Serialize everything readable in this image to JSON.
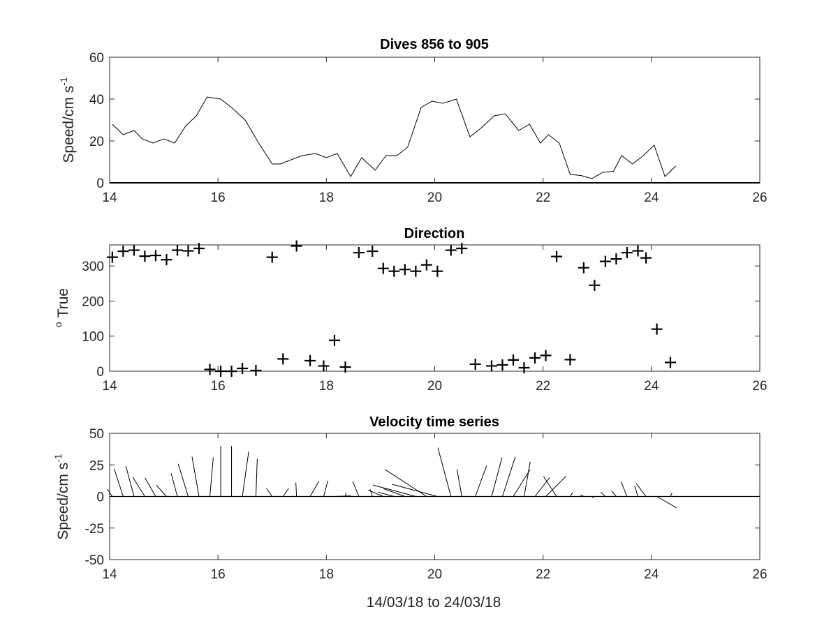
{
  "figure": {
    "xlabel": "14/03/18 to 24/03/18",
    "colors": {
      "line": "#000000",
      "axis": "#262626",
      "background": "#ffffff"
    }
  },
  "chart_data": [
    {
      "type": "line",
      "title": "Dives 856 to 905",
      "ylabel": "Speed/cm s",
      "ylabel_superscript": "-1",
      "xlim": [
        14,
        26
      ],
      "ylim": [
        0,
        60
      ],
      "xticks": [
        "14",
        "16",
        "18",
        "20",
        "22",
        "24",
        "26"
      ],
      "yticks": [
        "0",
        "20",
        "40",
        "60"
      ],
      "series": [
        {
          "x": [
            14.05,
            14.25,
            14.45,
            14.6,
            14.8,
            15.0,
            15.2,
            15.4,
            15.6,
            15.8,
            16.05,
            16.25,
            16.5,
            16.75,
            17.0,
            17.15,
            17.35,
            17.55,
            17.8,
            18.0,
            18.2,
            18.45,
            18.65,
            18.9,
            19.1,
            19.3,
            19.5,
            19.75,
            19.95,
            20.15,
            20.4,
            20.65,
            20.85,
            21.1,
            21.3,
            21.55,
            21.75,
            21.95,
            22.1,
            22.3,
            22.5,
            22.7,
            22.9,
            23.1,
            23.3,
            23.45,
            23.65,
            23.85,
            24.05,
            24.25,
            24.45
          ],
          "y": [
            28,
            23,
            25,
            21,
            19,
            21,
            19,
            27,
            32,
            41,
            40,
            36,
            30,
            19,
            9,
            9,
            11,
            13,
            14,
            12,
            14,
            3,
            12,
            6,
            13,
            13,
            17,
            36,
            39,
            38,
            40,
            22,
            26,
            32,
            33,
            25,
            28,
            19,
            23,
            19,
            4,
            3.5,
            2,
            5,
            5.5,
            13,
            9,
            13,
            18,
            3,
            8
          ]
        }
      ]
    },
    {
      "type": "scatter",
      "title": "Direction",
      "ylabel": "True",
      "ylabel_prefix": "o",
      "xlim": [
        14,
        26
      ],
      "ylim": [
        0,
        360
      ],
      "xticks": [
        "14",
        "16",
        "18",
        "20",
        "22",
        "24",
        "26"
      ],
      "yticks": [
        "0",
        "100",
        "200",
        "300"
      ],
      "marker": "+",
      "series": [
        {
          "x": [
            14.05,
            14.25,
            14.45,
            14.65,
            14.85,
            15.05,
            15.25,
            15.45,
            15.65,
            15.85,
            16.05,
            16.25,
            16.45,
            16.7,
            17.0,
            17.2,
            17.45,
            17.7,
            17.95,
            18.15,
            18.35,
            18.6,
            18.85,
            19.05,
            19.25,
            19.45,
            19.65,
            19.85,
            20.05,
            20.3,
            20.5,
            20.75,
            21.05,
            21.25,
            21.45,
            21.65,
            21.85,
            22.05,
            22.25,
            22.5,
            22.75,
            22.95,
            23.15,
            23.35,
            23.55,
            23.75,
            23.9,
            24.1,
            24.35
          ],
          "y": [
            325,
            342,
            345,
            328,
            330,
            318,
            345,
            343,
            350,
            5,
            0,
            0,
            8,
            2,
            325,
            35,
            357,
            30,
            15,
            88,
            12,
            338,
            342,
            293,
            285,
            290,
            285,
            303,
            285,
            345,
            350,
            20,
            15,
            18,
            32,
            10,
            38,
            45,
            327,
            33,
            295,
            245,
            313,
            320,
            338,
            343,
            323,
            120,
            25
          ]
        }
      ]
    },
    {
      "type": "line",
      "subtype": "stick-plot",
      "title": "Velocity time series",
      "ylabel": "Speed/cm s",
      "ylabel_superscript": "-1",
      "xlim": [
        14,
        26
      ],
      "ylim": [
        -50,
        50
      ],
      "xticks": [
        "14",
        "16",
        "18",
        "20",
        "22",
        "24",
        "26"
      ],
      "yticks": [
        "50",
        "25",
        "0",
        "-25",
        "-50"
      ],
      "sticks": {
        "x": [
          14.05,
          14.25,
          14.45,
          14.65,
          14.85,
          15.05,
          15.25,
          15.45,
          15.65,
          15.85,
          16.05,
          16.25,
          16.45,
          16.7,
          17.0,
          17.2,
          17.45,
          17.7,
          17.95,
          18.15,
          18.35,
          18.6,
          18.85,
          19.05,
          19.25,
          19.45,
          19.65,
          19.85,
          20.05,
          20.3,
          20.5,
          20.75,
          21.05,
          21.25,
          21.45,
          21.65,
          21.85,
          22.05,
          22.25,
          22.5,
          22.75,
          22.95,
          23.15,
          23.35,
          23.55,
          23.75,
          23.9,
          24.1,
          24.35
        ],
        "speed": [
          7,
          23,
          25,
          18,
          17,
          12,
          19,
          27,
          32,
          31,
          40,
          40,
          36,
          30,
          8,
          8,
          11,
          14,
          13,
          13,
          3,
          13,
          6,
          13,
          13,
          18,
          35,
          39,
          37,
          40,
          22,
          26,
          32,
          33,
          25,
          28,
          19,
          23,
          19,
          4,
          3,
          2,
          5,
          5.5,
          13,
          9,
          13,
          18,
          3
        ],
        "direction_deg_true": [
          325,
          342,
          345,
          328,
          330,
          318,
          345,
          343,
          350,
          5,
          0,
          0,
          8,
          2,
          325,
          35,
          357,
          30,
          15,
          88,
          12,
          338,
          342,
          293,
          285,
          290,
          285,
          303,
          285,
          345,
          350,
          20,
          15,
          18,
          32,
          10,
          38,
          45,
          327,
          33,
          295,
          245,
          313,
          320,
          338,
          343,
          323,
          120,
          25
        ]
      }
    }
  ]
}
